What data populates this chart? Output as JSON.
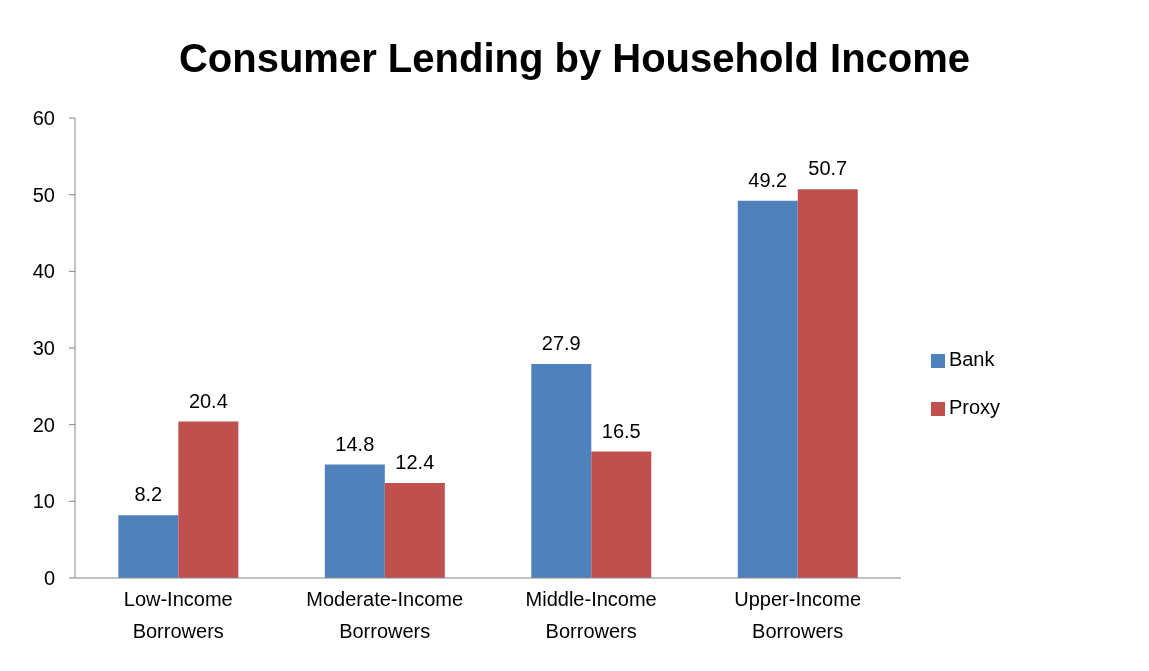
{
  "chart_data": {
    "type": "bar",
    "title": "Consumer Lending by Household Income",
    "categories": [
      "Low-Income Borrowers",
      "Moderate-Income Borrowers",
      "Middle-Income Borrowers",
      "Upper-Income Borrowers"
    ],
    "series": [
      {
        "name": "Bank",
        "color": "#4f81bd",
        "values": [
          8.2,
          14.8,
          27.9,
          49.2
        ]
      },
      {
        "name": "Proxy",
        "color": "#c0504d",
        "values": [
          20.4,
          12.4,
          16.5,
          50.7
        ]
      }
    ],
    "ylim": [
      0,
      60
    ],
    "yticks": [
      0,
      10,
      20,
      30,
      40,
      50,
      60
    ],
    "grid": false,
    "legend": "right",
    "data_labels": true
  }
}
